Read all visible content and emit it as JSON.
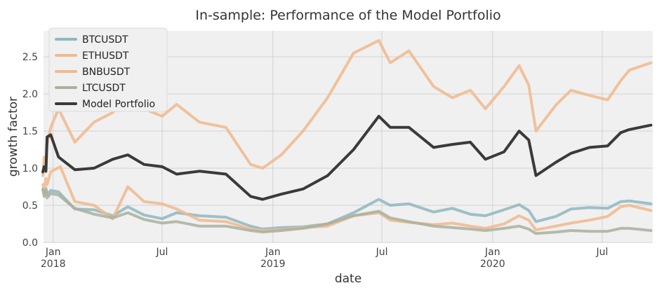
{
  "chart_data": {
    "type": "line",
    "title": "In-sample: Performance of the Model Portfolio",
    "xlabel": "date",
    "ylabel": "growth factor",
    "xlim": [
      "2017-12-16",
      "2020-09-23"
    ],
    "ylim": [
      0,
      2.85
    ],
    "grid": true,
    "legend_position": "top-left",
    "yticks": [
      "0.0",
      "0.5",
      "1.0",
      "1.5",
      "2.0",
      "2.5"
    ],
    "yticks_values": [
      0,
      0.5,
      1.0,
      1.5,
      2.0,
      2.5
    ],
    "xticks": [
      {
        "date": "2018-01-01",
        "label": "Jan",
        "sublabel": "2018"
      },
      {
        "date": "2018-07-01",
        "label": "Jul",
        "sublabel": ""
      },
      {
        "date": "2019-01-01",
        "label": "Jan",
        "sublabel": "2019"
      },
      {
        "date": "2019-07-01",
        "label": "Jul",
        "sublabel": ""
      },
      {
        "date": "2020-01-01",
        "label": "Jan",
        "sublabel": "2020"
      },
      {
        "date": "2020-07-01",
        "label": "Jul",
        "sublabel": ""
      }
    ],
    "series": [
      {
        "name": "BTCUSDT",
        "color": "#8fb6bf",
        "x": [
          "2017-12-15",
          "2017-12-17",
          "2017-12-20",
          "2017-12-22",
          "2017-12-28",
          "2018-01-10",
          "2018-02-06",
          "2018-03-10",
          "2018-04-10",
          "2018-05-05",
          "2018-06-01",
          "2018-07-01",
          "2018-07-25",
          "2018-09-01",
          "2018-10-15",
          "2018-11-25",
          "2018-12-15",
          "2019-01-15",
          "2019-02-20",
          "2019-04-02",
          "2019-05-15",
          "2019-06-26",
          "2019-07-15",
          "2019-08-15",
          "2019-09-25",
          "2019-10-26",
          "2019-11-25",
          "2019-12-20",
          "2020-01-20",
          "2020-02-14",
          "2020-03-01",
          "2020-03-13",
          "2020-04-15",
          "2020-05-10",
          "2020-06-10",
          "2020-07-10",
          "2020-08-01",
          "2020-08-15",
          "2020-09-20"
        ],
        "values": [
          0.71,
          0.66,
          0.73,
          0.65,
          0.7,
          0.68,
          0.45,
          0.44,
          0.36,
          0.48,
          0.37,
          0.32,
          0.4,
          0.36,
          0.34,
          0.22,
          0.18,
          0.2,
          0.21,
          0.25,
          0.4,
          0.58,
          0.5,
          0.52,
          0.41,
          0.46,
          0.38,
          0.36,
          0.44,
          0.51,
          0.43,
          0.28,
          0.35,
          0.45,
          0.47,
          0.46,
          0.55,
          0.56,
          0.52
        ]
      },
      {
        "name": "ETHUSDT",
        "color": "#f0b98c",
        "x": [
          "2017-12-15",
          "2017-12-17",
          "2017-12-20",
          "2017-12-22",
          "2017-12-28",
          "2018-01-13",
          "2018-02-06",
          "2018-03-10",
          "2018-04-10",
          "2018-05-05",
          "2018-06-01",
          "2018-07-01",
          "2018-07-25",
          "2018-09-01",
          "2018-10-15",
          "2018-11-25",
          "2018-12-15",
          "2019-01-15",
          "2019-02-20",
          "2019-04-02",
          "2019-05-15",
          "2019-06-26",
          "2019-07-15",
          "2019-08-15",
          "2019-09-25",
          "2019-10-26",
          "2019-11-25",
          "2019-12-20",
          "2020-01-20",
          "2020-02-14",
          "2020-03-01",
          "2020-03-13",
          "2020-04-15",
          "2020-05-10",
          "2020-06-10",
          "2020-07-10",
          "2020-08-01",
          "2020-08-15",
          "2020-09-20"
        ],
        "values": [
          0.78,
          0.7,
          0.86,
          0.78,
          0.95,
          1.02,
          0.55,
          0.5,
          0.32,
          0.75,
          0.55,
          0.52,
          0.45,
          0.3,
          0.28,
          0.18,
          0.16,
          0.17,
          0.2,
          0.22,
          0.36,
          0.4,
          0.3,
          0.27,
          0.24,
          0.26,
          0.22,
          0.19,
          0.25,
          0.36,
          0.3,
          0.17,
          0.22,
          0.26,
          0.3,
          0.35,
          0.48,
          0.5,
          0.43
        ]
      },
      {
        "name": "BNBUSDT",
        "color": "#f0b98c",
        "x": [
          "2017-12-15",
          "2017-12-17",
          "2017-12-20",
          "2017-12-22",
          "2017-12-28",
          "2018-01-10",
          "2018-02-06",
          "2018-03-10",
          "2018-04-10",
          "2018-05-05",
          "2018-06-01",
          "2018-07-01",
          "2018-07-25",
          "2018-09-01",
          "2018-10-15",
          "2018-11-25",
          "2018-12-15",
          "2019-01-15",
          "2019-02-20",
          "2019-04-02",
          "2019-05-15",
          "2019-06-26",
          "2019-07-15",
          "2019-08-15",
          "2019-09-25",
          "2019-10-26",
          "2019-11-25",
          "2019-12-20",
          "2020-01-20",
          "2020-02-14",
          "2020-03-01",
          "2020-03-13",
          "2020-04-15",
          "2020-05-10",
          "2020-06-10",
          "2020-07-10",
          "2020-08-01",
          "2020-08-15",
          "2020-09-20"
        ],
        "values": [
          0.9,
          1.15,
          0.95,
          1.32,
          1.55,
          1.8,
          1.35,
          1.62,
          1.75,
          1.98,
          1.8,
          1.7,
          1.86,
          1.62,
          1.55,
          1.05,
          1.0,
          1.18,
          1.5,
          1.95,
          2.55,
          2.72,
          2.42,
          2.58,
          2.1,
          1.95,
          2.05,
          1.8,
          2.1,
          2.38,
          2.12,
          1.5,
          1.85,
          2.05,
          1.98,
          1.92,
          2.18,
          2.32,
          2.42
        ]
      },
      {
        "name": "LTCUSDT",
        "color": "#a9b09e",
        "x": [
          "2017-12-15",
          "2017-12-17",
          "2017-12-20",
          "2017-12-22",
          "2017-12-28",
          "2018-01-10",
          "2018-02-06",
          "2018-03-10",
          "2018-04-10",
          "2018-05-05",
          "2018-06-01",
          "2018-07-01",
          "2018-07-25",
          "2018-09-01",
          "2018-10-15",
          "2018-11-25",
          "2018-12-15",
          "2019-01-15",
          "2019-02-20",
          "2019-04-02",
          "2019-05-15",
          "2019-06-26",
          "2019-07-15",
          "2019-08-15",
          "2019-09-25",
          "2019-10-26",
          "2019-11-25",
          "2019-12-20",
          "2020-01-20",
          "2020-02-14",
          "2020-03-01",
          "2020-03-13",
          "2020-04-15",
          "2020-05-10",
          "2020-06-10",
          "2020-07-10",
          "2020-08-01",
          "2020-08-15",
          "2020-09-20"
        ],
        "values": [
          0.72,
          0.62,
          0.7,
          0.6,
          0.66,
          0.64,
          0.46,
          0.38,
          0.33,
          0.4,
          0.31,
          0.26,
          0.28,
          0.22,
          0.22,
          0.16,
          0.14,
          0.16,
          0.19,
          0.25,
          0.36,
          0.42,
          0.33,
          0.28,
          0.22,
          0.2,
          0.18,
          0.16,
          0.19,
          0.22,
          0.18,
          0.12,
          0.14,
          0.16,
          0.15,
          0.15,
          0.19,
          0.19,
          0.16
        ]
      },
      {
        "name": "Model Portfolio",
        "color": "#3a3a3a",
        "x": [
          "2017-12-15",
          "2017-12-17",
          "2017-12-20",
          "2017-12-22",
          "2017-12-28",
          "2018-01-10",
          "2018-02-06",
          "2018-03-10",
          "2018-04-10",
          "2018-05-05",
          "2018-06-01",
          "2018-07-01",
          "2018-07-25",
          "2018-09-01",
          "2018-10-15",
          "2018-11-25",
          "2018-12-15",
          "2019-01-15",
          "2019-02-20",
          "2019-04-02",
          "2019-05-15",
          "2019-06-26",
          "2019-07-15",
          "2019-08-15",
          "2019-09-25",
          "2019-10-26",
          "2019-11-25",
          "2019-12-20",
          "2020-01-20",
          "2020-02-14",
          "2020-03-01",
          "2020-03-13",
          "2020-04-15",
          "2020-05-10",
          "2020-06-10",
          "2020-07-10",
          "2020-08-01",
          "2020-08-15",
          "2020-09-20"
        ],
        "values": [
          0.95,
          1.02,
          0.96,
          1.42,
          1.45,
          1.15,
          0.98,
          1.0,
          1.12,
          1.18,
          1.05,
          1.02,
          0.92,
          0.96,
          0.92,
          0.62,
          0.58,
          0.65,
          0.72,
          0.9,
          1.25,
          1.7,
          1.55,
          1.55,
          1.28,
          1.32,
          1.35,
          1.12,
          1.22,
          1.5,
          1.38,
          0.9,
          1.08,
          1.2,
          1.28,
          1.3,
          1.48,
          1.52,
          1.58
        ]
      }
    ]
  }
}
